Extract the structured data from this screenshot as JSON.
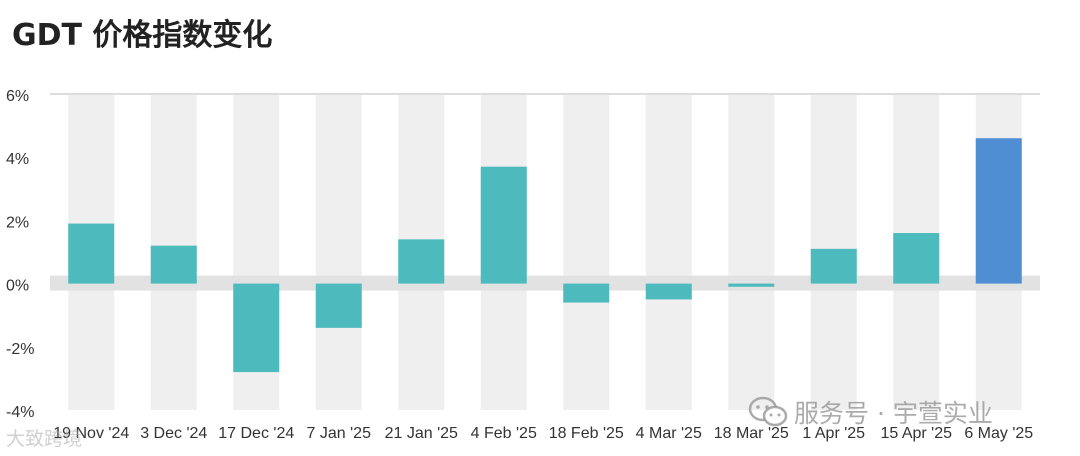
{
  "title": "GDT 价格指数变化",
  "chart_data": {
    "type": "bar",
    "categories": [
      "19 Nov '24",
      "3 Dec '24",
      "17 Dec '24",
      "7 Jan '25",
      "21 Jan '25",
      "4 Feb '25",
      "18 Feb '25",
      "4 Mar '25",
      "18 Mar '25",
      "1 Apr '25",
      "15 Apr '25",
      "6 May '25"
    ],
    "values": [
      1.9,
      1.2,
      -2.8,
      -1.4,
      1.4,
      3.7,
      -0.6,
      -0.5,
      -0.1,
      1.1,
      1.6,
      4.6
    ],
    "ylim": [
      -4,
      6
    ],
    "yticks": [
      "-4%",
      "-2%",
      "0%",
      "2%",
      "4%",
      "6%"
    ],
    "ytick_values": [
      -4,
      -2,
      0,
      2,
      4,
      6
    ],
    "colors": {
      "bar": "#4dbbbd",
      "highlight": "#4f8ed3",
      "band": "#efefef",
      "zero_band": "#e2e2e2"
    },
    "highlight_index": 11,
    "grid": false,
    "legend": "none"
  },
  "watermarks": {
    "left": "大致跨境",
    "right": "服务号 · 宇萱实业"
  }
}
